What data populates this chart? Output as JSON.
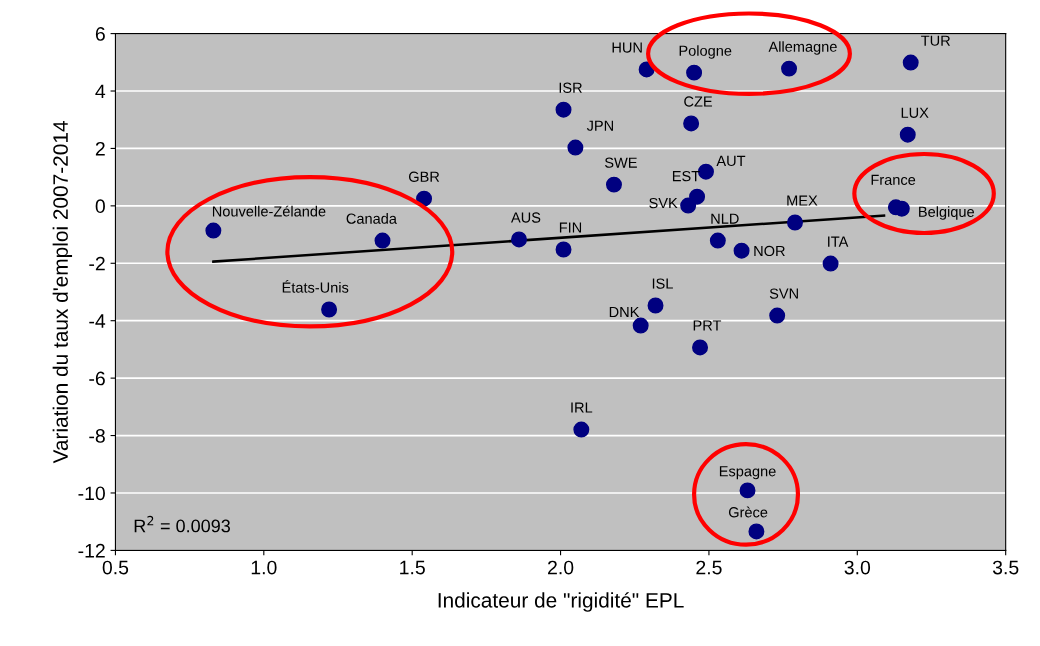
{
  "chart_data": {
    "type": "scatter",
    "xlabel": "Indicateur de \"rigidité\" EPL",
    "ylabel": "Variation du taux d'emploi 2007-2014",
    "xlim": [
      0.5,
      3.5
    ],
    "xticks": [
      {
        "value": 0.5,
        "label": "0.5"
      },
      {
        "value": 1.0,
        "label": "1.0"
      },
      {
        "value": 1.5,
        "label": "1.5"
      },
      {
        "value": 2.0,
        "label": "2.0"
      },
      {
        "value": 2.5,
        "label": "2.5"
      },
      {
        "value": 3.0,
        "label": "3.0"
      },
      {
        "value": 3.5,
        "label": "3.5"
      }
    ],
    "ylim": [
      -12,
      6
    ],
    "yticks": [
      -12,
      -10,
      -8,
      -6,
      -4,
      -2,
      0,
      2,
      4,
      6
    ],
    "grid": "y",
    "series": [
      {
        "marker": "circle",
        "color": "#000080",
        "x": [
          0.83,
          1.4,
          1.22,
          1.54,
          1.86,
          2.01,
          2.01,
          2.05,
          2.18,
          2.29,
          2.45,
          2.77,
          3.18,
          2.44,
          3.17,
          2.49,
          2.46,
          2.43,
          2.53,
          2.61,
          2.79,
          3.13,
          3.15,
          2.91,
          2.32,
          2.27,
          2.73,
          2.47,
          2.07,
          2.63,
          2.66
        ],
        "values": [
          -0.86,
          -1.21,
          -3.61,
          0.25,
          -1.17,
          -1.52,
          3.35,
          2.03,
          0.74,
          4.75,
          4.64,
          4.78,
          4.99,
          2.87,
          2.48,
          1.19,
          0.32,
          0.01,
          -1.21,
          -1.56,
          -0.58,
          -0.05,
          -0.1,
          -2.01,
          -3.47,
          -4.17,
          -3.82,
          -4.93,
          -7.79,
          -9.91,
          -11.34
        ]
      },
      {
        "type": "line",
        "color": "#000000",
        "x": [
          0.83,
          3.09
        ],
        "values": [
          -1.94,
          -0.34
        ]
      }
    ],
    "annotations": [
      {
        "text": "Nouvelle-Zélande",
        "x": 0.83,
        "y": -0.86
      },
      {
        "text": "Canada",
        "x": 1.4,
        "y": -1.21
      },
      {
        "text": "États-Unis",
        "x": 1.22,
        "y": -3.61
      },
      {
        "text": "GBR",
        "x": 1.54,
        "y": 0.25
      },
      {
        "text": "AUS",
        "x": 1.86,
        "y": -1.17
      },
      {
        "text": "FIN",
        "x": 2.01,
        "y": -1.52
      },
      {
        "text": "ISR",
        "x": 2.01,
        "y": 3.35
      },
      {
        "text": "JPN",
        "x": 2.05,
        "y": 2.03
      },
      {
        "text": "SWE",
        "x": 2.18,
        "y": 0.74
      },
      {
        "text": "HUN",
        "x": 2.29,
        "y": 4.75
      },
      {
        "text": "Pologne",
        "x": 2.45,
        "y": 4.64
      },
      {
        "text": "Allemagne",
        "x": 2.77,
        "y": 4.78
      },
      {
        "text": "TUR",
        "x": 3.18,
        "y": 4.99
      },
      {
        "text": "CZE",
        "x": 2.44,
        "y": 2.87
      },
      {
        "text": "LUX",
        "x": 3.17,
        "y": 2.48
      },
      {
        "text": "AUT",
        "x": 2.49,
        "y": 1.19
      },
      {
        "text": "EST",
        "x": 2.46,
        "y": 0.32
      },
      {
        "text": "SVK",
        "x": 2.43,
        "y": 0.01
      },
      {
        "text": "NLD",
        "x": 2.53,
        "y": -1.21
      },
      {
        "text": "NOR",
        "x": 2.61,
        "y": -1.56
      },
      {
        "text": "MEX",
        "x": 2.79,
        "y": -0.58
      },
      {
        "text": "France",
        "x": 3.13,
        "y": -0.05
      },
      {
        "text": "Belgique",
        "x": 3.15,
        "y": -0.1
      },
      {
        "text": "ITA",
        "x": 2.91,
        "y": -2.01
      },
      {
        "text": "ISL",
        "x": 2.32,
        "y": -3.47
      },
      {
        "text": "DNK",
        "x": 2.27,
        "y": -4.17
      },
      {
        "text": "SVN",
        "x": 2.73,
        "y": -3.82
      },
      {
        "text": "PRT",
        "x": 2.47,
        "y": -4.93
      },
      {
        "text": "IRL",
        "x": 2.07,
        "y": -7.79
      },
      {
        "text": "Espagne",
        "x": 2.63,
        "y": -9.91
      },
      {
        "text": "Grèce",
        "x": 2.66,
        "y": -11.34
      },
      "R$^{2}$ = 0.0093"
    ]
  }
}
